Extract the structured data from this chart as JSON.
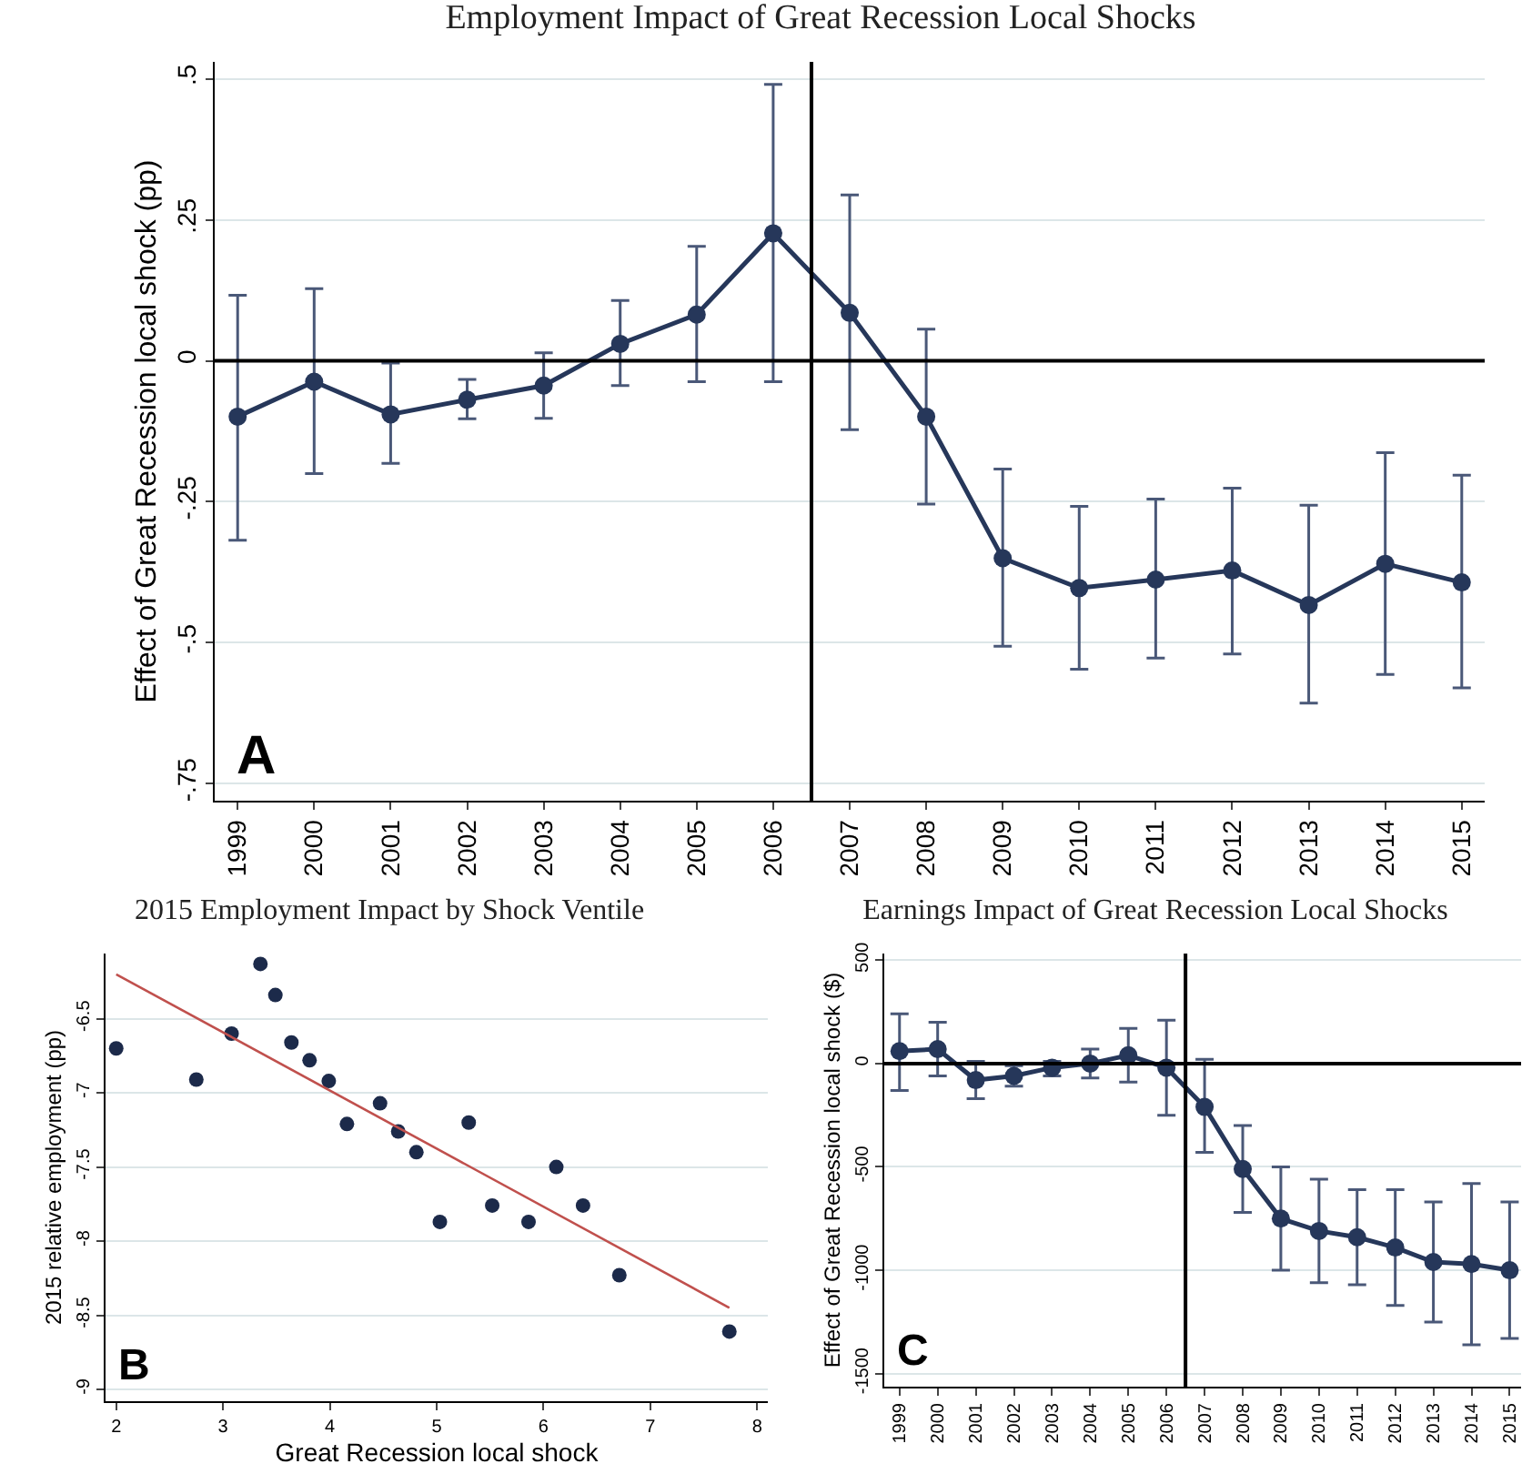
{
  "chart_data": [
    {
      "type": "line",
      "title": "Employment Impact of Great Recession Local Shocks",
      "ylabel": "Effect of Great Recession local shock (pp)",
      "annotations": [
        "A"
      ],
      "x": [
        1999,
        2000,
        2001,
        2002,
        2003,
        2004,
        2005,
        2006,
        2007,
        2008,
        2009,
        2010,
        2011,
        2012,
        2013,
        2014,
        2015
      ],
      "series": [
        {
          "color": "#26375a",
          "values": [
            -0.099,
            -0.037,
            -0.095,
            -0.069,
            -0.044,
            0.03,
            0.082,
            0.226,
            0.085,
            -0.099,
            -0.35,
            -0.403,
            -0.388,
            -0.372,
            -0.433,
            -0.36,
            -0.393
          ],
          "errors": [
            [
              -0.318,
              0.116
            ],
            [
              -0.2,
              0.128
            ],
            [
              -0.182,
              -0.004
            ],
            [
              -0.103,
              -0.033
            ],
            [
              -0.102,
              0.014
            ],
            [
              -0.044,
              0.107
            ],
            [
              -0.037,
              0.203
            ],
            [
              -0.037,
              0.49
            ],
            [
              -0.122,
              0.294
            ],
            [
              -0.254,
              0.056
            ],
            [
              -0.506,
              -0.192
            ],
            [
              -0.547,
              -0.258
            ],
            [
              -0.527,
              -0.245
            ],
            [
              -0.52,
              -0.226
            ],
            [
              -0.607,
              -0.256
            ],
            [
              -0.556,
              -0.163
            ],
            [
              -0.58,
              -0.203
            ]
          ]
        }
      ],
      "xlim": [
        1998.7,
        2015.3
      ],
      "xticks": [
        1999,
        2000,
        2001,
        2002,
        2003,
        2004,
        2005,
        2006,
        2007,
        2008,
        2009,
        2010,
        2011,
        2012,
        2013,
        2014,
        2015
      ],
      "ylim": [
        -0.78,
        0.53
      ],
      "yticks": [
        {
          "value": -0.75,
          "label": "-.75"
        },
        {
          "value": -0.5,
          "label": "-.5"
        },
        {
          "value": -0.25,
          "label": "-.25"
        },
        0,
        {
          "value": 0.25,
          "label": ".25"
        },
        {
          "value": 0.5,
          "label": ".5"
        }
      ],
      "ref_lines": [
        {
          "axis": "y",
          "value": 0,
          "color": "#000000"
        },
        {
          "axis": "x",
          "value": 2006.5,
          "color": "#000000"
        }
      ],
      "grid": "y",
      "marker": "circle",
      "line_style": "solid"
    },
    {
      "type": "scatter",
      "title": "2015 Employment Impact by Shock Ventile",
      "xlabel": "Great Recession local shock",
      "ylabel": "2015 relative employment (pp)",
      "annotations": [
        "B"
      ],
      "series": [
        {
          "color": "#1c2a4a",
          "x": [
            2.0,
            2.75,
            3.08,
            3.35,
            3.49,
            3.64,
            3.81,
            3.99,
            4.16,
            4.47,
            4.64,
            4.81,
            5.03,
            5.3,
            5.52,
            5.86,
            6.12,
            6.37,
            6.71,
            7.74
          ],
          "values": [
            -6.7,
            -6.91,
            -6.6,
            -6.13,
            -6.34,
            -6.66,
            -6.78,
            -6.92,
            -7.21,
            -7.07,
            -7.26,
            -7.4,
            -7.87,
            -7.2,
            -7.76,
            -7.87,
            -7.5,
            -7.76,
            -8.23,
            -8.61
          ]
        },
        {
          "type": "line",
          "marker": "none",
          "color": "#c0504d",
          "x": [
            2.0,
            7.74
          ],
          "values": [
            -6.2,
            -8.45
          ]
        }
      ],
      "xlim": [
        1.9,
        8.1
      ],
      "xticks": [
        2,
        3,
        4,
        5,
        6,
        7,
        8
      ],
      "ylim": [
        -9.08,
        -6.06
      ],
      "yticks": [
        -9,
        -8.5,
        -8,
        -7.5,
        -7,
        -6.5
      ],
      "grid": "y",
      "marker": "circle"
    },
    {
      "type": "line",
      "title": "Earnings Impact of Great Recession Local Shocks",
      "ylabel": "Effect of Great Recession local shock ($)",
      "annotations": [
        "C"
      ],
      "x": [
        1999,
        2000,
        2001,
        2002,
        2003,
        2004,
        2005,
        2006,
        2007,
        2008,
        2009,
        2010,
        2011,
        2012,
        2013,
        2014,
        2015
      ],
      "series": [
        {
          "color": "#26375a",
          "values": [
            60,
            70,
            -80,
            -60,
            -20,
            0,
            40,
            -20,
            -210,
            -510,
            -750,
            -810,
            -840,
            -890,
            -960,
            -970,
            -1000
          ],
          "errors": [
            [
              -130,
              240
            ],
            [
              -60,
              200
            ],
            [
              -170,
              10
            ],
            [
              -110,
              -10
            ],
            [
              -60,
              10
            ],
            [
              -70,
              70
            ],
            [
              -90,
              170
            ],
            [
              -250,
              210
            ],
            [
              -430,
              20
            ],
            [
              -720,
              -300
            ],
            [
              -1000,
              -500
            ],
            [
              -1060,
              -560
            ],
            [
              -1070,
              -610
            ],
            [
              -1170,
              -610
            ],
            [
              -1250,
              -670
            ],
            [
              -1360,
              -580
            ],
            [
              -1330,
              -670
            ]
          ]
        }
      ],
      "xlim": [
        1998.6,
        2015.3
      ],
      "xticks": [
        1999,
        2000,
        2001,
        2002,
        2003,
        2004,
        2005,
        2006,
        2007,
        2008,
        2009,
        2010,
        2011,
        2012,
        2013,
        2014,
        2015
      ],
      "ylim": [
        -1563,
        532
      ],
      "yticks": [
        -1500,
        -1000,
        -500,
        0,
        500
      ],
      "ref_lines": [
        {
          "axis": "y",
          "value": 0,
          "color": "#000000"
        },
        {
          "axis": "x",
          "value": 2006.5,
          "color": "#000000"
        }
      ],
      "grid": "y",
      "marker": "circle",
      "line_style": "solid"
    }
  ]
}
